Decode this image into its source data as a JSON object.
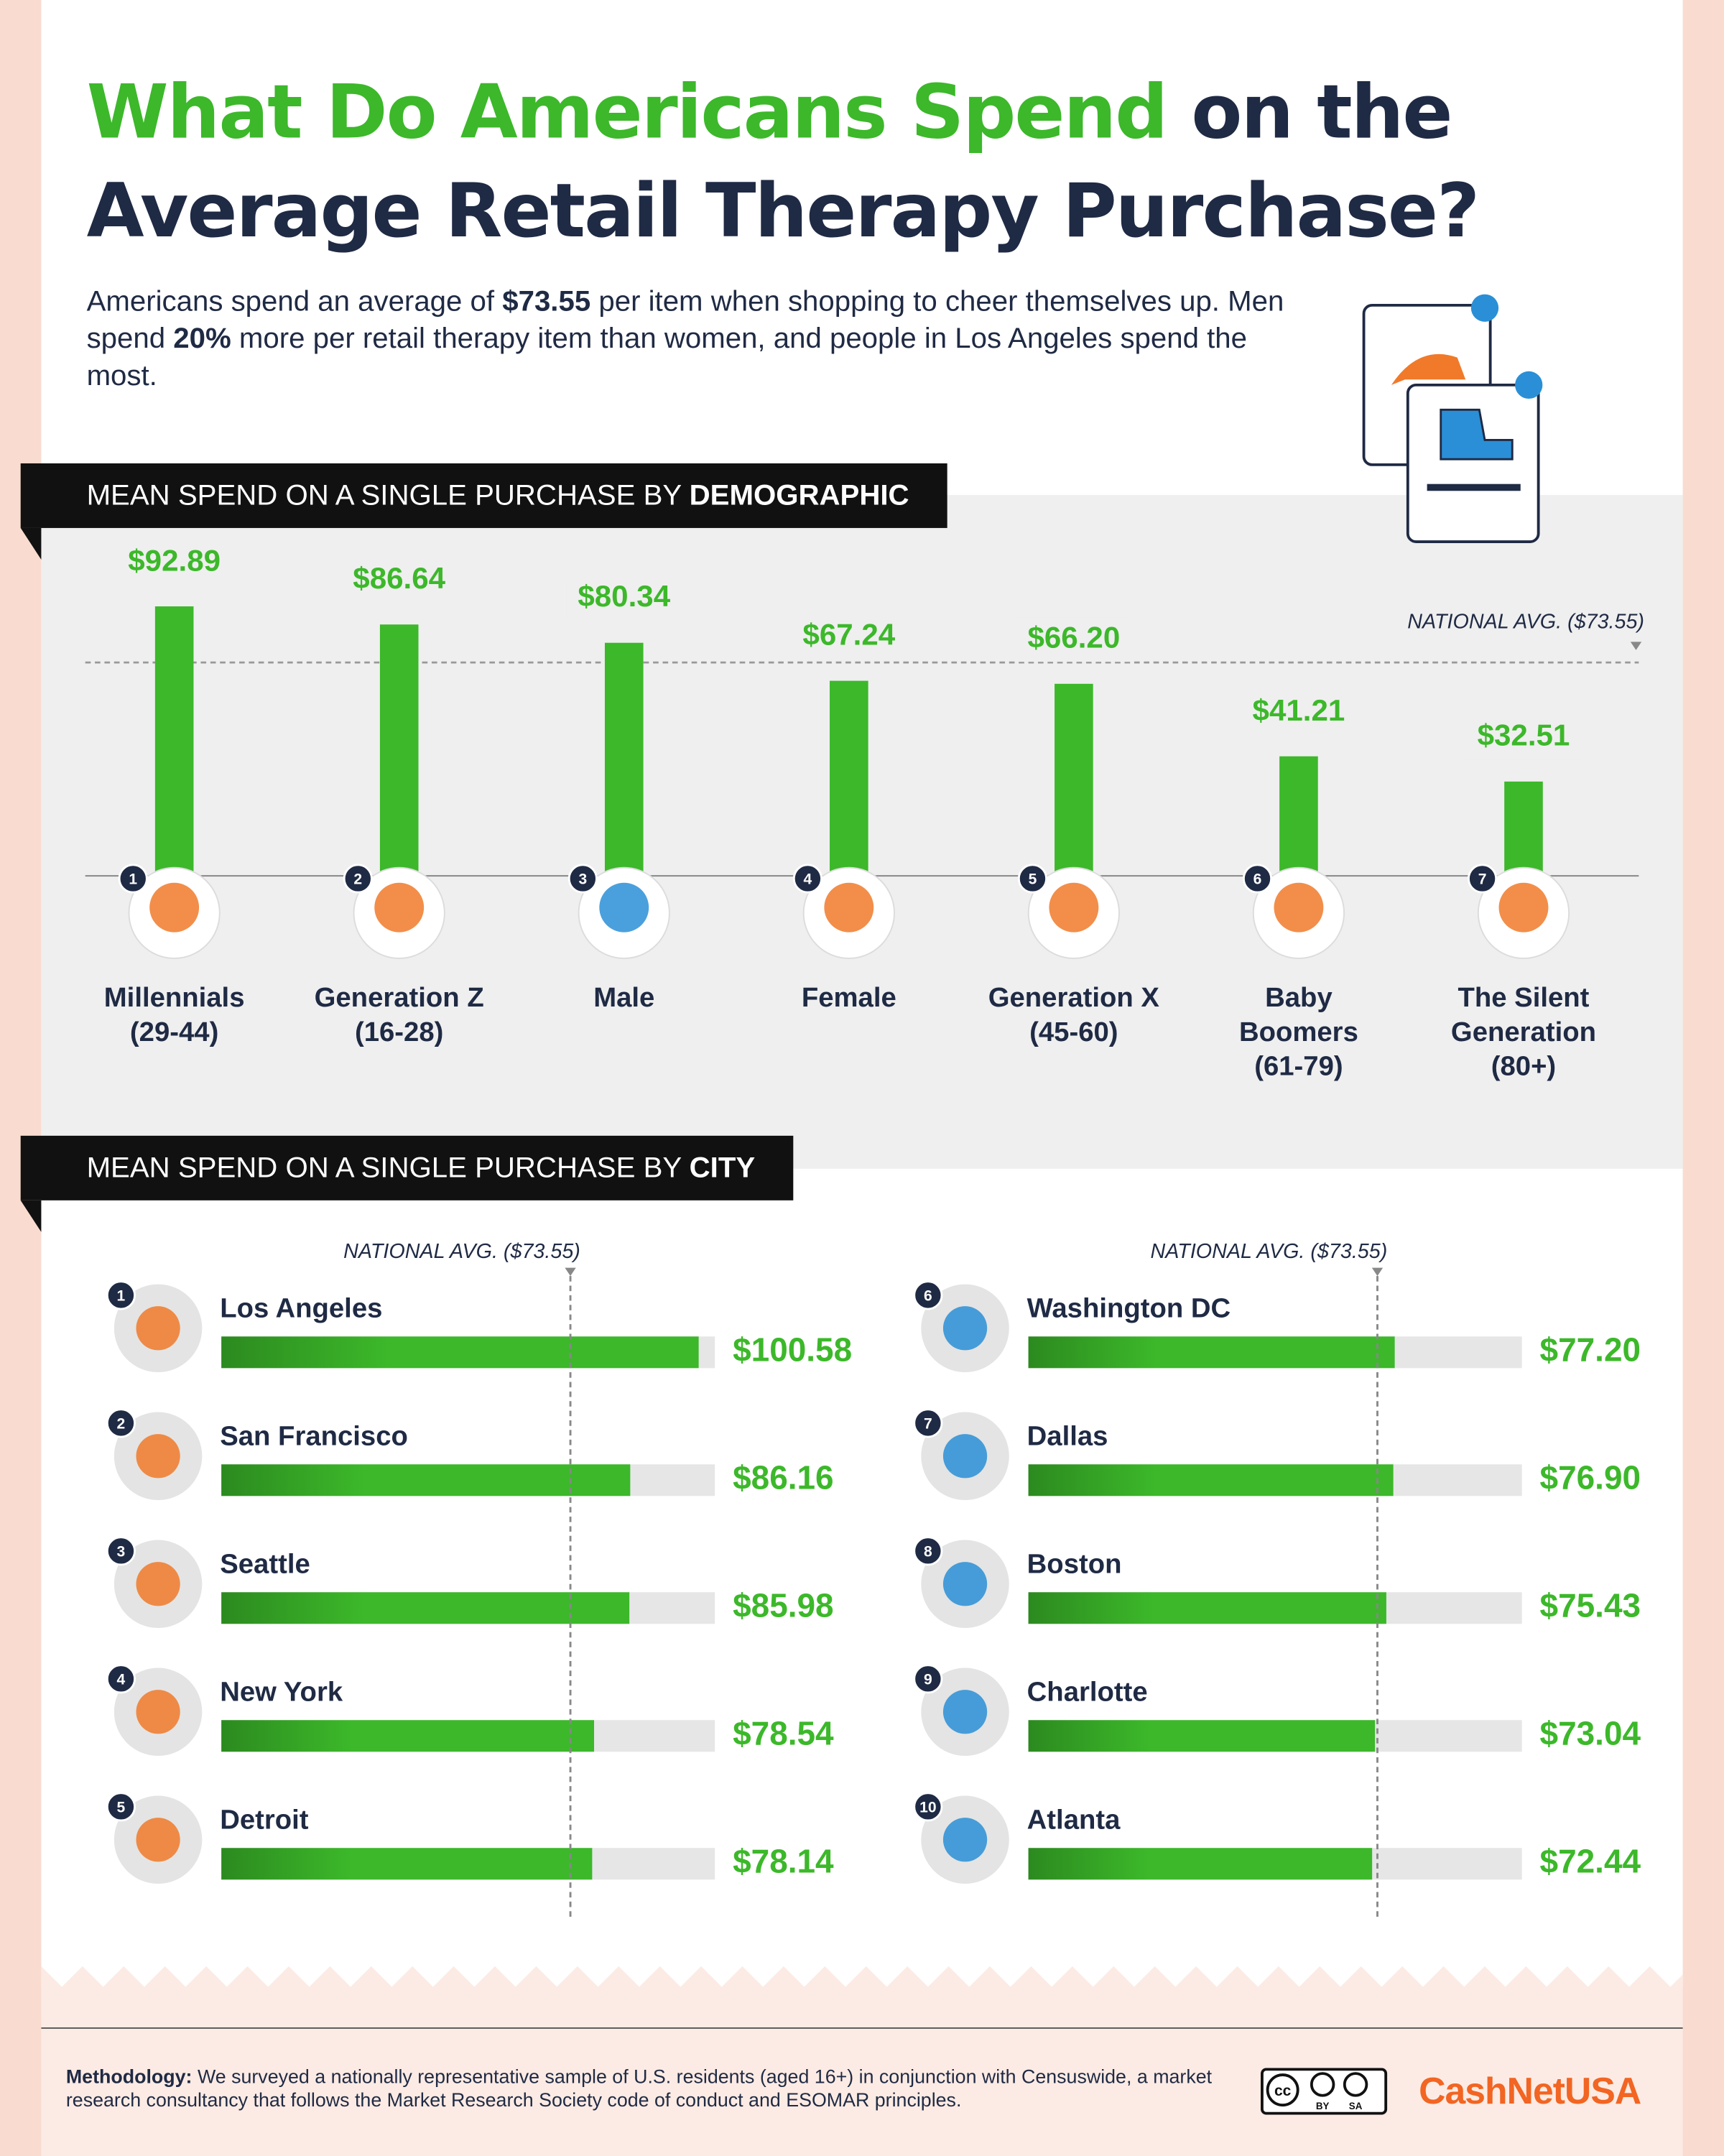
{
  "header": {
    "title": [
      {
        "text": "What Do Americans Spend",
        "highlight": true
      },
      {
        "text": "on the Average Retail Therapy Purchase?",
        "highlight": false
      }
    ],
    "intro": [
      {
        "text": "Americans spend an average of ",
        "bold": false
      },
      {
        "text": "$73.55",
        "bold": true
      },
      {
        "text": " per item when shopping to cheer themselves up. Men spend ",
        "bold": false
      },
      {
        "text": "20%",
        "bold": true
      },
      {
        "text": " more per retail therapy item than women, and people in Los Angeles spend the most.",
        "bold": false
      }
    ]
  },
  "chart_data": [
    {
      "type": "bar",
      "title": "MEAN SPEND ON A SINGLE PURCHASE BY ",
      "title_emphasis": "DEMOGRAPHIC",
      "categories": [
        "Millennials\n(29-44)",
        "Generation Z\n(16-28)",
        "Male",
        "Female",
        "Generation X\n(45-60)",
        "Baby\nBoomers\n(61-79)",
        "The Silent\nGeneration\n(80+)"
      ],
      "ranks": [
        1,
        2,
        3,
        4,
        5,
        6,
        7
      ],
      "values": [
        92.89,
        86.64,
        80.34,
        67.24,
        66.2,
        41.21,
        32.51
      ],
      "value_labels": [
        "$92.89",
        "$86.64",
        "$80.34",
        "$67.24",
        "$66.20",
        "$41.21",
        "$32.51"
      ],
      "color": "#3cb82a",
      "ylim": [
        0,
        100
      ],
      "reference": {
        "value": 73.55,
        "label": "NATIONAL AVG. ($73.55)"
      }
    },
    {
      "type": "hbar",
      "title": "MEAN SPEND ON A SINGLE PURCHASE BY ",
      "title_emphasis": "CITY",
      "categories": [
        "Los Angeles",
        "San Francisco",
        "Seattle",
        "New York",
        "Detroit",
        "Washington DC",
        "Dallas",
        "Boston",
        "Charlotte",
        "Atlanta"
      ],
      "ranks": [
        1,
        2,
        3,
        4,
        5,
        6,
        7,
        8,
        9,
        10
      ],
      "values": [
        100.58,
        86.16,
        85.98,
        78.54,
        78.14,
        77.2,
        76.9,
        75.43,
        73.04,
        72.44
      ],
      "value_labels": [
        "$100.58",
        "$86.16",
        "$85.98",
        "$78.54",
        "$78.14",
        "$77.20",
        "$76.90",
        "$75.43",
        "$73.04",
        "$72.44"
      ],
      "color": "#3cb82a",
      "columns": 2,
      "xlim": [
        0,
        104
      ],
      "reference": {
        "value": 73.55,
        "label": "NATIONAL AVG. ($73.55)"
      }
    }
  ],
  "footer": {
    "methodology": [
      {
        "text": "Methodology:",
        "bold": true
      },
      {
        "text": " We surveyed a nationally representative sample of U.S. residents (aged 16+) in conjunction with Censuswide, a market research consultancy that follows the Market Research Society code of conduct and ESOMAR principles.",
        "bold": false
      }
    ],
    "license": [
      "cc",
      "BY",
      "SA"
    ],
    "logo": "CashNetUSA"
  }
}
